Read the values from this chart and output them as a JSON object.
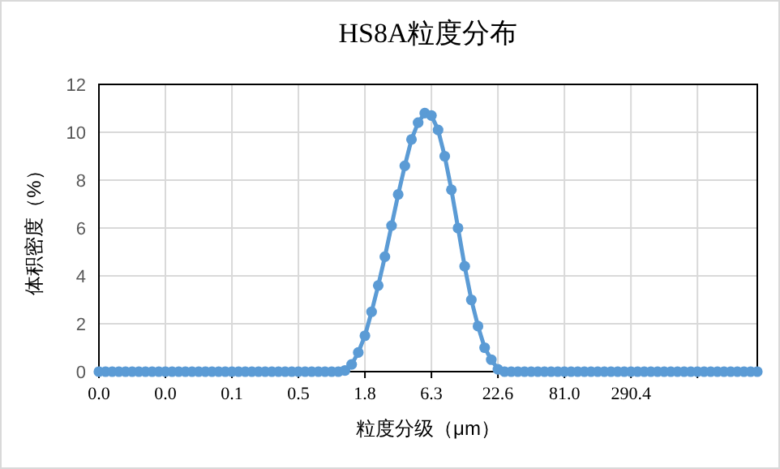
{
  "chart_data": {
    "type": "line",
    "title": "HS8A粒度分布",
    "xlabel": "粒度分级（μm）",
    "ylabel": "体积密度（%）",
    "categories": [
      "0.0",
      null,
      null,
      null,
      null,
      null,
      null,
      null,
      null,
      null,
      "0.0",
      null,
      null,
      null,
      null,
      null,
      null,
      null,
      null,
      null,
      "0.1",
      null,
      null,
      null,
      null,
      null,
      null,
      null,
      null,
      null,
      "0.5",
      null,
      null,
      null,
      null,
      null,
      null,
      null,
      null,
      null,
      "1.8",
      null,
      null,
      null,
      null,
      null,
      null,
      null,
      null,
      null,
      "6.3",
      null,
      null,
      null,
      null,
      null,
      null,
      null,
      null,
      null,
      "22.6",
      null,
      null,
      null,
      null,
      null,
      null,
      null,
      null,
      null,
      "81.0",
      null,
      null,
      null,
      null,
      null,
      null,
      null,
      null,
      null,
      "290.4",
      null,
      null,
      null,
      null,
      null,
      null,
      null,
      null,
      null,
      null,
      null,
      null,
      null,
      null,
      null,
      null,
      null,
      null,
      null
    ],
    "series": [
      {
        "color": "#5b9bd5",
        "values": [
          0,
          0,
          0,
          0,
          0,
          0,
          0,
          0,
          0,
          0,
          0,
          0,
          0,
          0,
          0,
          0,
          0,
          0,
          0,
          0,
          0,
          0,
          0,
          0,
          0,
          0,
          0,
          0,
          0,
          0,
          0,
          0,
          0,
          0,
          0,
          0,
          0,
          0.05,
          0.3,
          0.8,
          1.5,
          2.5,
          3.6,
          4.8,
          6.1,
          7.4,
          8.6,
          9.7,
          10.4,
          10.8,
          10.7,
          10.1,
          9.0,
          7.6,
          6.0,
          4.4,
          3.0,
          1.9,
          1.0,
          0.5,
          0.1,
          0,
          0,
          0,
          0,
          0,
          0,
          0,
          0,
          0,
          0,
          0,
          0,
          0,
          0,
          0,
          0,
          0,
          0,
          0,
          0,
          0,
          0,
          0,
          0,
          0,
          0,
          0,
          0,
          0,
          0,
          0,
          0,
          0,
          0,
          0,
          0,
          0,
          0,
          0
        ]
      }
    ],
    "ylim": [
      0,
      12
    ],
    "yticks": [
      0,
      2,
      4,
      6,
      8,
      10,
      12
    ],
    "grid": true,
    "marker": "circle",
    "line_style": "solid"
  }
}
